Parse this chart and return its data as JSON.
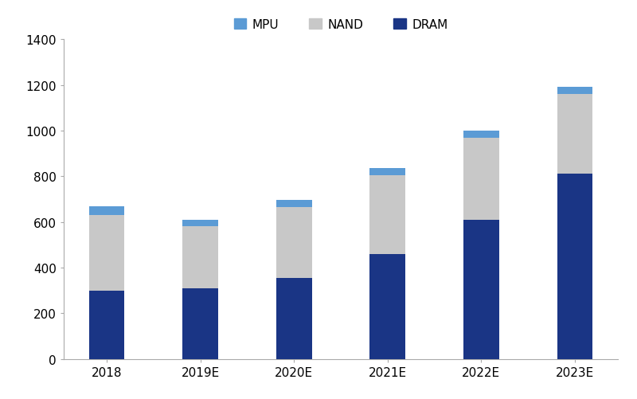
{
  "categories": [
    "2018",
    "2019E",
    "2020E",
    "2021E",
    "2022E",
    "2023E"
  ],
  "dram": [
    300,
    310,
    355,
    460,
    610,
    810
  ],
  "nand": [
    330,
    270,
    310,
    345,
    360,
    350
  ],
  "mpu": [
    40,
    30,
    30,
    30,
    30,
    30
  ],
  "dram_color": "#1a3585",
  "nand_color": "#c8c8c8",
  "mpu_color": "#5b9bd5",
  "bar_width": 0.38,
  "ylim": [
    0,
    1400
  ],
  "yticks": [
    0,
    200,
    400,
    600,
    800,
    1000,
    1200,
    1400
  ],
  "legend_labels": [
    "MPU",
    "NAND",
    "DRAM"
  ],
  "background_color": "#ffffff"
}
